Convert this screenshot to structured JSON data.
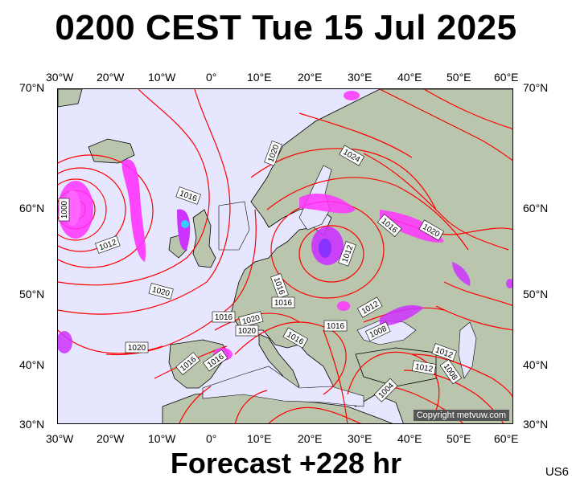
{
  "header": {
    "title": "0200 CEST Tue 15 Jul 2025"
  },
  "footer": {
    "forecast": "Forecast +228 hr",
    "code": "US6"
  },
  "map": {
    "copyright": "Copyright metvuw.com",
    "colors": {
      "sea": "#e6e6ff",
      "land": "#b9c6ad",
      "isobar": "#ff0000",
      "precip_low": "#ff33ff",
      "precip_mid": "#8833ff",
      "precip_high": "#33aaff"
    },
    "lon_labels": [
      "30°W",
      "20°W",
      "10°W",
      "0°",
      "10°E",
      "20°E",
      "30°E",
      "40°E",
      "50°E",
      "60°E"
    ],
    "lat_labels": [
      "70°N",
      "60°N",
      "50°N",
      "40°N",
      "30°N"
    ],
    "isobar_labels": [
      "1000",
      "1012",
      "1016",
      "1020",
      "1020",
      "1020",
      "1024",
      "1016",
      "1020",
      "1012",
      "1016",
      "1016",
      "1016",
      "1020",
      "1016",
      "1016",
      "1016",
      "1012",
      "1008",
      "1012",
      "1012",
      "1008",
      "1004",
      "1020",
      "1016"
    ]
  }
}
